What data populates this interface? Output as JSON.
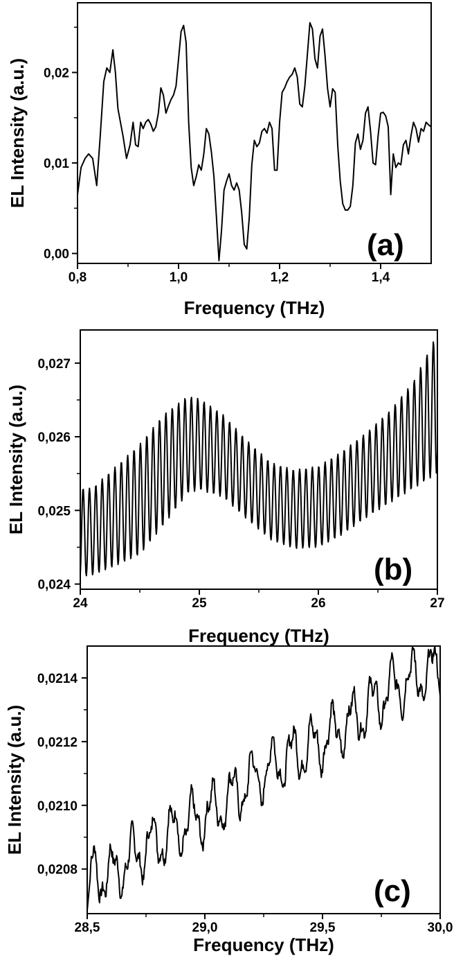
{
  "chart_data": [
    {
      "type": "line",
      "panel_label": "(a)",
      "xlabel": "Frequency (THz)",
      "ylabel": "EL Intensity (a.u.)",
      "xlim": [
        0.8,
        1.5
      ],
      "ylim": [
        -0.0011,
        0.0277
      ],
      "x_ticks": [
        0.8,
        1.0,
        1.2,
        1.4
      ],
      "x_tick_labels": [
        "0,8",
        "1,0",
        "1,2",
        "1,4"
      ],
      "y_ticks": [
        0.0,
        0.01,
        0.02
      ],
      "y_tick_labels": [
        "0,00",
        "0,01",
        "0,02"
      ],
      "series": [
        {
          "x": [
            0.8,
            0.807,
            0.815,
            0.822,
            0.83,
            0.838,
            0.845,
            0.852,
            0.858,
            0.864,
            0.87,
            0.875,
            0.88,
            0.885,
            0.89,
            0.897,
            0.904,
            0.91,
            0.915,
            0.92,
            0.925,
            0.93,
            0.935,
            0.94,
            0.945,
            0.95,
            0.955,
            0.96,
            0.965,
            0.97,
            0.975,
            0.98,
            0.985,
            0.99,
            0.995,
            1.0,
            1.005,
            1.01,
            1.015,
            1.02,
            1.025,
            1.03,
            1.035,
            1.04,
            1.045,
            1.05,
            1.055,
            1.06,
            1.065,
            1.07,
            1.075,
            1.08,
            1.085,
            1.09,
            1.095,
            1.1,
            1.105,
            1.11,
            1.115,
            1.12,
            1.125,
            1.13,
            1.135,
            1.14,
            1.145,
            1.15,
            1.155,
            1.16,
            1.165,
            1.17,
            1.175,
            1.18,
            1.185,
            1.19,
            1.195,
            1.2,
            1.205,
            1.21,
            1.215,
            1.22,
            1.225,
            1.23,
            1.235,
            1.24,
            1.245,
            1.25,
            1.255,
            1.26,
            1.265,
            1.27,
            1.275,
            1.28,
            1.285,
            1.29,
            1.295,
            1.3,
            1.305,
            1.31,
            1.315,
            1.32,
            1.325,
            1.33,
            1.335,
            1.34,
            1.345,
            1.35,
            1.355,
            1.36,
            1.365,
            1.37,
            1.375,
            1.38,
            1.385,
            1.39,
            1.395,
            1.4,
            1.405,
            1.41,
            1.415,
            1.42,
            1.425,
            1.43,
            1.435,
            1.44,
            1.445,
            1.45,
            1.455,
            1.46,
            1.465,
            1.47,
            1.475,
            1.48,
            1.485,
            1.49,
            1.495,
            1.5
          ],
          "y": [
            0.0065,
            0.0095,
            0.0105,
            0.011,
            0.0105,
            0.0075,
            0.013,
            0.019,
            0.0205,
            0.02,
            0.0225,
            0.02,
            0.016,
            0.0145,
            0.013,
            0.0105,
            0.012,
            0.0145,
            0.012,
            0.0118,
            0.0145,
            0.0138,
            0.0145,
            0.0148,
            0.0143,
            0.0135,
            0.014,
            0.0155,
            0.0183,
            0.0175,
            0.0155,
            0.0163,
            0.017,
            0.0175,
            0.0185,
            0.0215,
            0.0245,
            0.0252,
            0.0233,
            0.0145,
            0.0095,
            0.0075,
            0.0085,
            0.0098,
            0.0092,
            0.011,
            0.0138,
            0.0132,
            0.0112,
            0.0085,
            0.004,
            -0.0008,
            0.0025,
            0.007,
            0.008,
            0.0088,
            0.0075,
            0.007,
            0.0078,
            0.007,
            0.0045,
            0.001,
            0.0005,
            0.004,
            0.0098,
            0.0125,
            0.0118,
            0.0122,
            0.0135,
            0.0138,
            0.0133,
            0.0145,
            0.0138,
            0.0092,
            0.0092,
            0.0145,
            0.0178,
            0.0183,
            0.019,
            0.0195,
            0.0198,
            0.0205,
            0.0195,
            0.0165,
            0.0162,
            0.0185,
            0.022,
            0.0255,
            0.0248,
            0.0215,
            0.0205,
            0.024,
            0.0248,
            0.0218,
            0.0182,
            0.0162,
            0.0182,
            0.0178,
            0.012,
            0.008,
            0.0055,
            0.0048,
            0.0048,
            0.0052,
            0.0075,
            0.0122,
            0.0132,
            0.0115,
            0.0125,
            0.0155,
            0.0162,
            0.0135,
            0.01,
            0.0098,
            0.013,
            0.0155,
            0.0156,
            0.0152,
            0.014,
            0.0065,
            0.011,
            0.0095,
            0.01,
            0.0098,
            0.012,
            0.0125,
            0.011,
            0.013,
            0.0145,
            0.0138,
            0.0123,
            0.0138,
            0.0135,
            0.0145,
            0.0142,
            0.014
          ]
        }
      ]
    },
    {
      "type": "line",
      "panel_label": "(b)",
      "xlabel": "Frequency (THz)",
      "ylabel": "EL Intensity (a.u.)",
      "xlim": [
        24,
        27
      ],
      "ylim": [
        0.02393,
        0.02745
      ],
      "x_ticks": [
        24,
        25,
        26,
        27
      ],
      "x_tick_labels": [
        "24",
        "25",
        "26",
        "27"
      ],
      "y_ticks": [
        0.024,
        0.025,
        0.026,
        0.027
      ],
      "y_tick_labels": [
        "0,024",
        "0,025",
        "0,026",
        "0,027"
      ],
      "series": [
        {
          "x_start": 24.0,
          "x_end": 27.0,
          "oscillation_period": 0.0535,
          "envelope_x": [
            24.0,
            24.1,
            24.3,
            24.5,
            24.7,
            24.9,
            25.0,
            25.2,
            25.4,
            25.6,
            25.8,
            26.0,
            26.2,
            26.4,
            26.6,
            26.8,
            27.0
          ],
          "envelope_max": [
            0.0253,
            0.0253,
            0.0256,
            0.0259,
            0.0263,
            0.02655,
            0.02652,
            0.0263,
            0.02595,
            0.02565,
            0.02555,
            0.0256,
            0.0258,
            0.02605,
            0.02635,
            0.02675,
            0.0274
          ],
          "envelope_min": [
            0.0241,
            0.02412,
            0.02425,
            0.0244,
            0.0248,
            0.02523,
            0.02528,
            0.02518,
            0.02488,
            0.0246,
            0.02448,
            0.0245,
            0.02467,
            0.0249,
            0.0251,
            0.0253,
            0.0255
          ]
        }
      ]
    },
    {
      "type": "line",
      "panel_label": "(c)",
      "xlabel": "Frequency (THz)",
      "ylabel": "EL Intensity (a.u.)",
      "xlim": [
        28.5,
        30.0
      ],
      "ylim": [
        0.02066,
        0.0215
      ],
      "x_ticks": [
        28.5,
        29.0,
        29.5,
        30.0
      ],
      "x_tick_labels": [
        "28,5",
        "29,0",
        "29,5",
        "30,0"
      ],
      "y_ticks": [
        0.0208,
        0.021,
        0.0212,
        0.0214
      ],
      "y_tick_labels": [
        "0,0208",
        "0,0210",
        "0,0212",
        "0,0214"
      ],
      "series": [
        {
          "x_start": 28.5,
          "x_end": 30.0,
          "baseline_x": [
            28.5,
            28.6,
            28.75,
            28.9,
            29.05,
            29.2,
            29.35,
            29.5,
            29.65,
            29.8,
            29.9,
            30.0
          ],
          "baseline_y": [
            0.02079,
            0.02078,
            0.02087,
            0.02093,
            0.02099,
            0.02108,
            0.02115,
            0.0212,
            0.02128,
            0.02137,
            0.0214,
            0.02143
          ],
          "ripple_period": 0.085,
          "ripple_amplitude": 9e-05,
          "min_y": 0.02067,
          "max_y": 0.0215
        }
      ]
    }
  ]
}
